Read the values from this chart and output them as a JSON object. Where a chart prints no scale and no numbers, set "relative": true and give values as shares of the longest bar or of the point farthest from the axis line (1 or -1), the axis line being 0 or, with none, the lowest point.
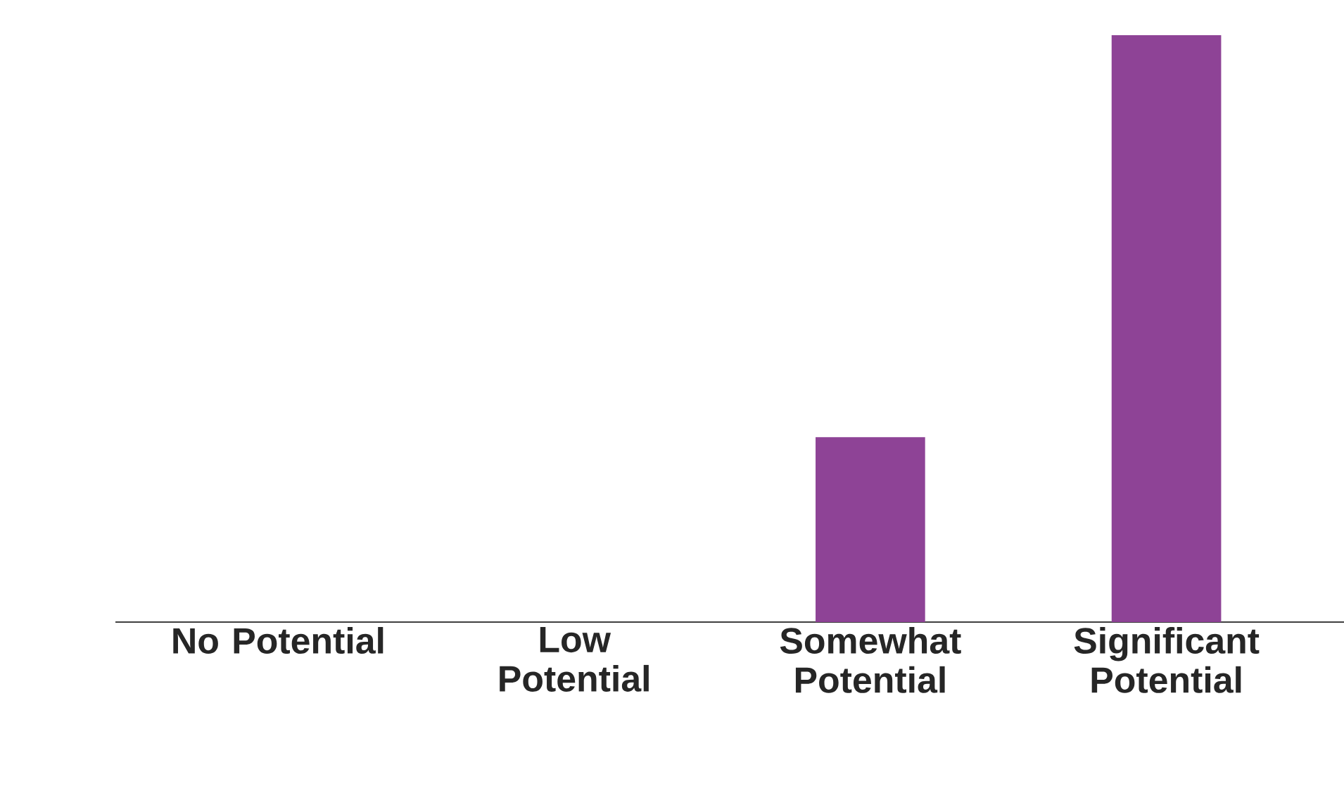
{
  "chart_data": {
    "type": "bar",
    "relative": true,
    "categories": [
      "No Potential",
      "Low Potential",
      "Somewhat Potential",
      "Significant Potential"
    ],
    "values": [
      0,
      0,
      0.315,
      1
    ],
    "color": "#8e4396",
    "grid": false
  }
}
